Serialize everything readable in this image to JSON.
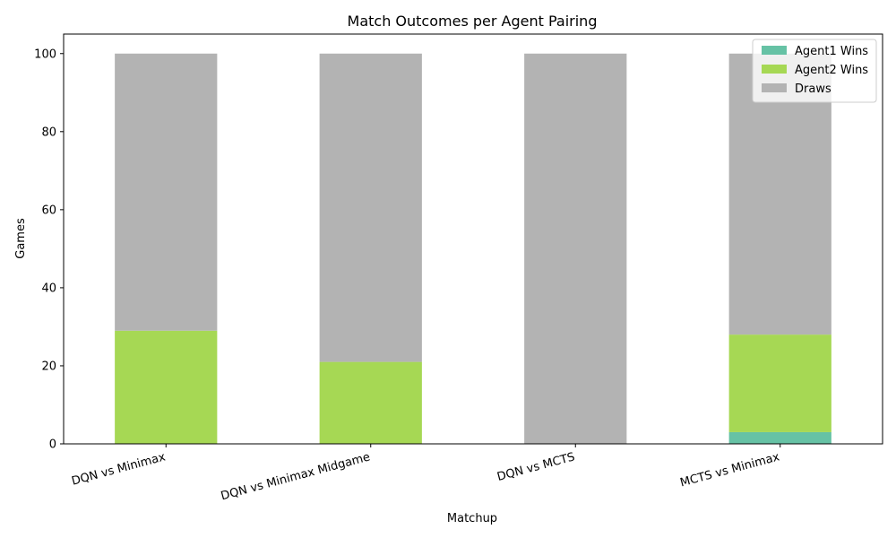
{
  "chart_data": {
    "type": "bar",
    "stacked": true,
    "title": "Match Outcomes per Agent Pairing",
    "xlabel": "Matchup",
    "ylabel": "Games",
    "categories": [
      "DQN vs Minimax",
      "DQN vs Minimax Midgame",
      "DQN vs MCTS",
      "MCTS vs Minimax"
    ],
    "series": [
      {
        "name": "Agent1 Wins",
        "color": "#66c2a5",
        "values": [
          0,
          0,
          0,
          3
        ]
      },
      {
        "name": "Agent2 Wins",
        "color": "#a6d854",
        "values": [
          29,
          21,
          0,
          25
        ]
      },
      {
        "name": "Draws",
        "color": "#b3b3b3",
        "values": [
          71,
          79,
          100,
          72
        ]
      }
    ],
    "ylim": [
      0,
      105
    ],
    "yticks": [
      0,
      20,
      40,
      60,
      80,
      100
    ],
    "grid": false,
    "legend_position": "top-right"
  }
}
